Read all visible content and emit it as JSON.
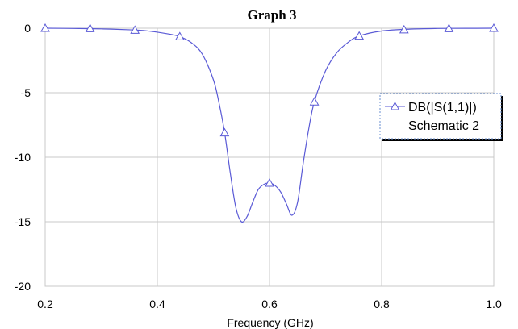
{
  "chart_data": {
    "type": "line",
    "title": "Graph 3",
    "xlabel": "Frequency (GHz)",
    "ylabel": "",
    "xlim": [
      0.2,
      1.0
    ],
    "ylim": [
      -20,
      0
    ],
    "xticks": [
      "0.2",
      "0.4",
      "0.6",
      "0.8",
      "1.0"
    ],
    "yticks": [
      "0",
      "-5",
      "-10",
      "-15",
      "-20"
    ],
    "grid": true,
    "legend_position": "right",
    "series": [
      {
        "name": "DB(|S(1,1)|)",
        "subtitle": "Schematic 2",
        "color": "#5a5ad6",
        "marker": "triangle",
        "x": [
          0.2,
          0.25,
          0.3,
          0.35,
          0.38,
          0.42,
          0.44,
          0.46,
          0.48,
          0.5,
          0.51,
          0.52,
          0.53,
          0.54,
          0.55,
          0.56,
          0.57,
          0.58,
          0.59,
          0.6,
          0.61,
          0.62,
          0.63,
          0.64,
          0.65,
          0.66,
          0.67,
          0.68,
          0.7,
          0.72,
          0.74,
          0.76,
          0.8,
          0.85,
          0.9,
          0.95,
          1.0
        ],
        "y": [
          0,
          -0.02,
          -0.05,
          -0.12,
          -0.2,
          -0.45,
          -0.65,
          -1.1,
          -2.0,
          -4.0,
          -5.8,
          -8.1,
          -11.2,
          -13.9,
          -15.0,
          -14.6,
          -13.5,
          -12.5,
          -12.1,
          -12.0,
          -12.2,
          -12.7,
          -13.6,
          -14.5,
          -13.5,
          -10.5,
          -7.8,
          -5.7,
          -3.3,
          -1.9,
          -1.1,
          -0.6,
          -0.22,
          -0.07,
          -0.02,
          -0.01,
          0
        ],
        "markers_x": [
          0.2,
          0.28,
          0.36,
          0.44,
          0.52,
          0.6,
          0.68,
          0.76,
          0.84,
          0.92,
          1.0
        ],
        "markers_y": [
          0,
          -0.02,
          -0.15,
          -0.65,
          -8.1,
          -12.0,
          -5.7,
          -0.6,
          -0.12,
          -0.02,
          0
        ]
      }
    ]
  }
}
